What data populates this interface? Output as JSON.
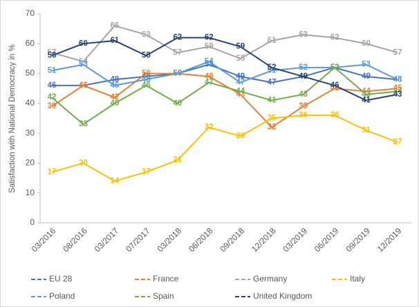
{
  "chart_data": {
    "type": "line",
    "y_label": "Satisfaction with National Democracy in %",
    "categories": [
      "03/2016",
      "08/2016",
      "03/2017",
      "07/2017",
      "03/2018",
      "06/2018",
      "09/2018",
      "12/2018",
      "03/2019",
      "06/2019",
      "09/2019",
      "12/2019"
    ],
    "series": [
      {
        "name": "EU 28",
        "color": "#4472c4",
        "values": [
          46,
          46,
          48,
          49,
          50,
          53,
          49,
          47,
          49,
          52,
          49,
          48
        ]
      },
      {
        "name": "France",
        "color": "#ed7d31",
        "values": [
          39,
          46,
          42,
          50,
          50,
          49,
          43,
          32,
          39,
          45,
          44,
          45
        ]
      },
      {
        "name": "Germany",
        "color": "#a5a5a5",
        "values": [
          57,
          54,
          66,
          63,
          57,
          59,
          55,
          61,
          63,
          62,
          60,
          57
        ]
      },
      {
        "name": "Italy",
        "color": "#ffc000",
        "values": [
          17,
          20,
          14,
          17,
          21,
          32,
          29,
          35,
          36,
          36,
          31,
          27
        ]
      },
      {
        "name": "Poland",
        "color": "#5b9bd5",
        "values": [
          51,
          53,
          46,
          48,
          50,
          54,
          47,
          51,
          52,
          52,
          53,
          48
        ]
      },
      {
        "name": "Spain",
        "color": "#70ad47",
        "values": [
          42,
          33,
          40,
          46,
          40,
          47,
          44,
          41,
          43,
          52,
          43,
          44
        ]
      },
      {
        "name": "United Kingdom",
        "color": "#264478",
        "values": [
          56,
          60,
          61,
          56,
          62,
          62,
          59,
          52,
          49,
          46,
          41,
          43
        ]
      }
    ],
    "ylim": [
      0,
      70
    ],
    "yticks": [
      0,
      10,
      20,
      30,
      40,
      50,
      60,
      70
    ],
    "grid": false,
    "legend": "bottom"
  }
}
